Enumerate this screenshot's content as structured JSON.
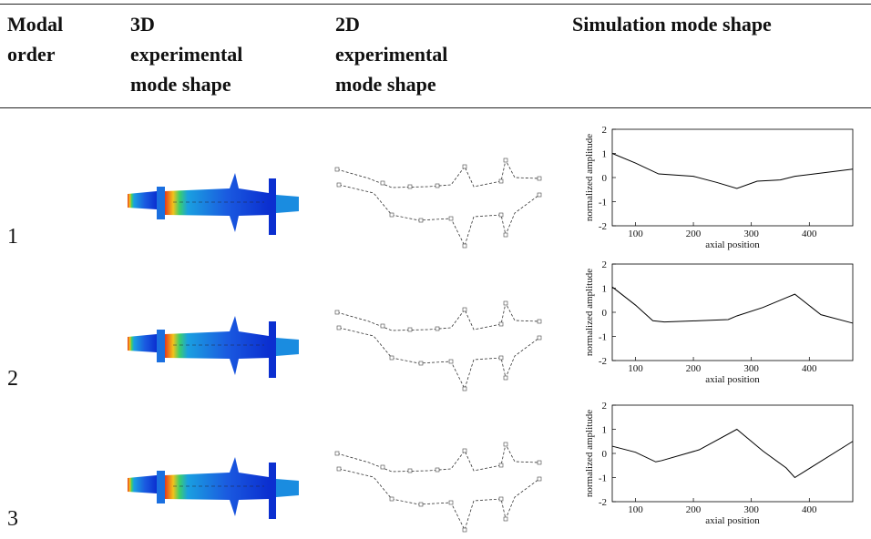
{
  "table": {
    "headers": [
      "Modal order",
      "3D experimental mode shape",
      "2D experimental mode shape",
      "Simulation mode shape"
    ],
    "rows": [
      {
        "modal_order": "1",
        "simulation_chart": {
          "type": "line",
          "xlabel": "axial position",
          "ylabel": "normalized amplitude",
          "x": [
            60,
            100,
            140,
            200,
            240,
            275,
            310,
            350,
            375,
            475
          ],
          "values": [
            1.0,
            0.6,
            0.15,
            0.05,
            -0.2,
            -0.45,
            -0.15,
            -0.1,
            0.05,
            0.35
          ],
          "xlim": [
            60,
            475
          ],
          "ylim": [
            -2,
            2
          ],
          "xticks": [
            100,
            200,
            300,
            400
          ],
          "yticks": [
            -2,
            -1,
            0,
            1,
            2
          ],
          "color": "#000000"
        }
      },
      {
        "modal_order": "2",
        "simulation_chart": {
          "type": "line",
          "xlabel": "axial position",
          "ylabel": "normalized amplitude",
          "x": [
            60,
            100,
            130,
            150,
            210,
            260,
            275,
            320,
            360,
            375,
            420,
            475
          ],
          "values": [
            1.05,
            0.3,
            -0.35,
            -0.4,
            -0.35,
            -0.3,
            -0.15,
            0.2,
            0.6,
            0.75,
            -0.1,
            -0.45
          ],
          "xlim": [
            60,
            475
          ],
          "ylim": [
            -2,
            2
          ],
          "xticks": [
            100,
            200,
            300,
            400
          ],
          "yticks": [
            -2,
            -1,
            0,
            1,
            2
          ],
          "color": "#000000"
        }
      },
      {
        "modal_order": "3",
        "simulation_chart": {
          "type": "line",
          "xlabel": "axial position",
          "ylabel": "normalized amplitude",
          "x": [
            60,
            100,
            135,
            145,
            210,
            275,
            320,
            360,
            375,
            475
          ],
          "values": [
            0.3,
            0.05,
            -0.35,
            -0.3,
            0.15,
            1.0,
            0.1,
            -0.6,
            -1.0,
            0.5
          ],
          "xlim": [
            60,
            475
          ],
          "ylim": [
            -2,
            2
          ],
          "xticks": [
            100,
            200,
            300,
            400
          ],
          "yticks": [
            -2,
            -1,
            0,
            1,
            2
          ],
          "color": "#000000"
        }
      }
    ]
  }
}
